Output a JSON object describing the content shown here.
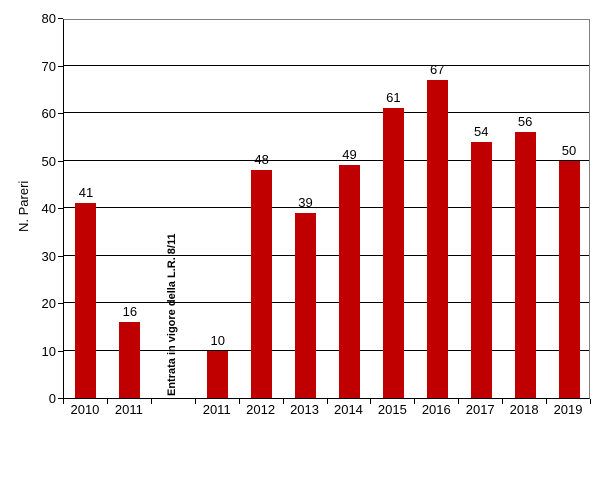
{
  "chart_data": {
    "type": "bar",
    "title": "",
    "xlabel": "",
    "ylabel": "N. Pareri",
    "ylim": [
      0,
      80
    ],
    "ytick_step": 10,
    "grid": true,
    "legend_position": "none",
    "bar_color": "#C00000",
    "gridline_color": "#000000",
    "plot_border_color": "#808080",
    "categories": [
      "2010",
      "2011",
      "",
      "2011",
      "2012",
      "2013",
      "2014",
      "2015",
      "2016",
      "2017",
      "2018",
      "2019"
    ],
    "values": [
      41,
      16,
      null,
      10,
      48,
      39,
      49,
      61,
      67,
      54,
      56,
      50
    ],
    "annotation": {
      "text": "Entrata in vigore della L.R. 8/11",
      "slot_index": 2
    }
  }
}
